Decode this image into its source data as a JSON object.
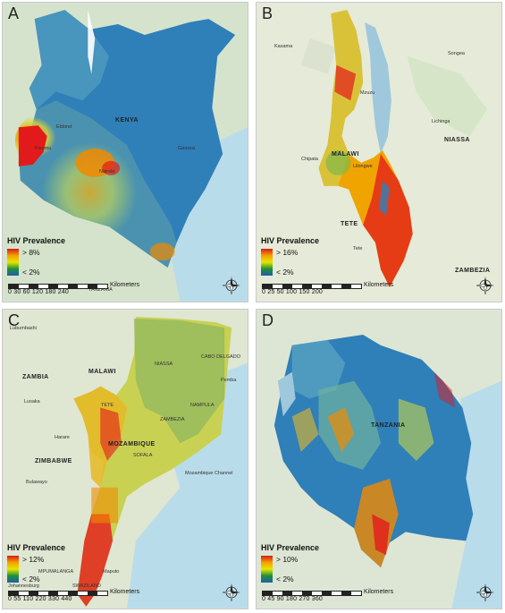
{
  "figure": {
    "panels": [
      {
        "letter": "A",
        "legend_title": "HIV Prevalence",
        "legend_high": "> 8%",
        "legend_low": "< 2%",
        "scale_labels": "0 30 60 120 180 240",
        "scale_unit": "Kilometers",
        "country_label": "KENYA",
        "place_labels": [
          "TANZANIA",
          "Nairobi",
          "Garissa",
          "Kisumu",
          "Eldoret"
        ]
      },
      {
        "letter": "B",
        "legend_title": "HIV Prevalence",
        "legend_high": "> 16%",
        "legend_low": "< 2%",
        "scale_labels": "0 25 50 100 150 200",
        "scale_unit": "Kilometers",
        "country_label": "MALAWI",
        "place_labels": [
          "Kasama",
          "Songea",
          "NIASSA",
          "Lichinga",
          "Chipata",
          "TETE",
          "Tete",
          "ZAMBEZIA",
          "Lilongwe",
          "Mzuzu"
        ]
      },
      {
        "letter": "C",
        "legend_title": "HIV Prevalence",
        "legend_high": "> 12%",
        "legend_low": "< 2%",
        "scale_labels": "0 55 110 220 330 440",
        "scale_unit": "Kilometers",
        "country_label": "MOZAMBIQUE",
        "place_labels": [
          "Lubumbashi",
          "ZAMBIA",
          "Lusaka",
          "MALAWI",
          "Harare",
          "ZIMBABWE",
          "Bulawayo",
          "CABO DELGADO",
          "NIASSA",
          "NAMPULA",
          "ZAMBEZIA",
          "SOFALA",
          "Mozambique Channel",
          "Maputo",
          "SWAZILAND",
          "Johannesburg",
          "MPUMALANGA",
          "TETE",
          "Pemba"
        ]
      },
      {
        "letter": "D",
        "legend_title": "HIV Prevalence",
        "legend_high": "> 10%",
        "legend_low": "< 2%",
        "scale_labels": "0 45 90 180 270 360",
        "scale_unit": "Kilometers",
        "country_label": "TANZANIA",
        "place_labels": []
      }
    ]
  }
}
